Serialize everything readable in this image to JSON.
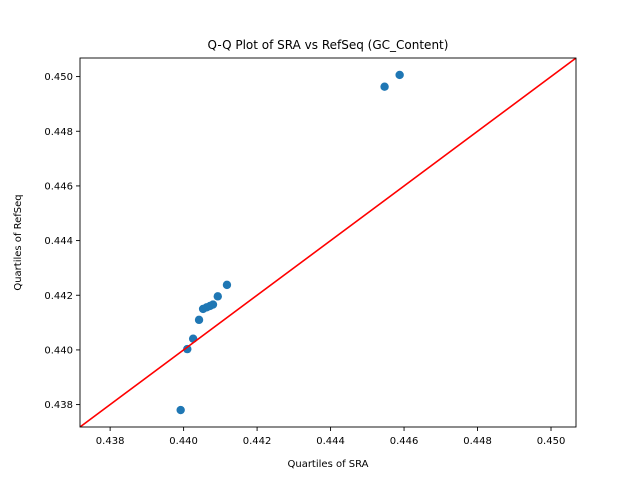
{
  "chart_data": {
    "type": "scatter",
    "title": "Q-Q Plot of SRA vs RefSeq (GC_Content)",
    "xlabel": "Quartiles of SRA",
    "ylabel": "Quartiles of RefSeq",
    "xlim": [
      0.43718,
      0.45068
    ],
    "ylim": [
      0.43718,
      0.45068
    ],
    "x_ticks": [
      0.438,
      0.44,
      0.442,
      0.444,
      0.446,
      0.448,
      0.45
    ],
    "x_tick_labels": [
      "0.438",
      "0.440",
      "0.442",
      "0.444",
      "0.446",
      "0.448",
      "0.450"
    ],
    "y_ticks": [
      0.438,
      0.44,
      0.442,
      0.444,
      0.446,
      0.448,
      0.45
    ],
    "y_tick_labels": [
      "0.438",
      "0.440",
      "0.442",
      "0.444",
      "0.446",
      "0.448",
      "0.450"
    ],
    "grid": false,
    "points": [
      {
        "x": 0.43992,
        "y": 0.4378
      },
      {
        "x": 0.4401,
        "y": 0.44003
      },
      {
        "x": 0.44026,
        "y": 0.44041
      },
      {
        "x": 0.44042,
        "y": 0.4411
      },
      {
        "x": 0.44053,
        "y": 0.4415
      },
      {
        "x": 0.44063,
        "y": 0.44156
      },
      {
        "x": 0.44072,
        "y": 0.44161
      },
      {
        "x": 0.4408,
        "y": 0.44166
      },
      {
        "x": 0.44093,
        "y": 0.44196
      },
      {
        "x": 0.44118,
        "y": 0.44238
      },
      {
        "x": 0.44547,
        "y": 0.44963
      },
      {
        "x": 0.44588,
        "y": 0.45006
      }
    ],
    "reference_line": {
      "from": [
        0.43718,
        0.43718
      ],
      "to": [
        0.45068,
        0.45068
      ]
    },
    "colors": {
      "points": "#1f77b4",
      "reference_line": "#ff0000",
      "axes": "#000000"
    }
  }
}
